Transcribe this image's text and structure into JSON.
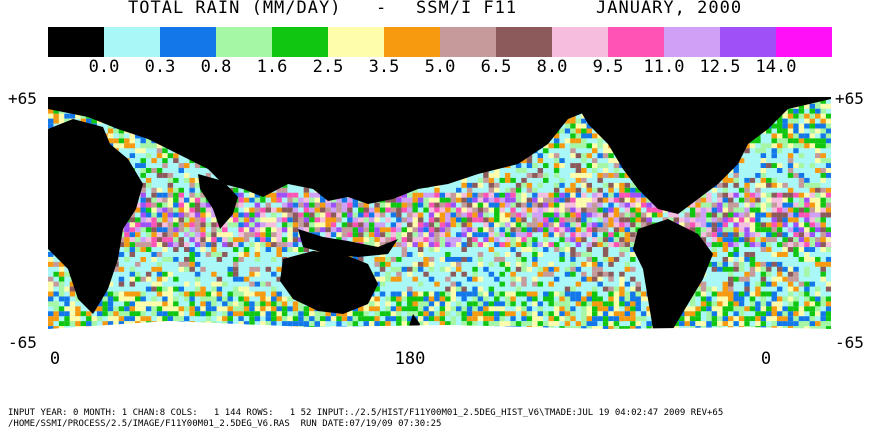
{
  "title": {
    "part1": "TOTAL RAIN (MM/DAY)",
    "sep": "-",
    "part2": "SSM/I F11",
    "part3": "JANUARY, 2000"
  },
  "legend": {
    "colors": [
      "#000000",
      "#aaf7f7",
      "#1477e9",
      "#a5f7a5",
      "#10c610",
      "#fdfdac",
      "#f79a10",
      "#c69a9a",
      "#8c5a5a",
      "#f7bdde",
      "#ff54b6",
      "#d0a0f7",
      "#a050f7",
      "#ff10f7"
    ],
    "labels": [
      "0.0",
      "0.3",
      "0.8",
      "1.6",
      "2.5",
      "3.5",
      "5.0",
      "6.5",
      "8.0",
      "9.5",
      "11.0",
      "12.5",
      "14.0"
    ]
  },
  "axes": {
    "lat_top_left": "+65",
    "lat_top_right": "+65",
    "lat_bottom_left": "-65",
    "lat_bottom_right": "-65",
    "lon_labels": [
      "0",
      "180",
      "0"
    ]
  },
  "footer": {
    "line1": "INPUT YEAR: 0 MONTH: 1 CHAN:8 COLS:   1 144 ROWS:   1 52 INPUT:./2.5/HIST/F11Y00M01_2.5DEG_HIST_V6\\TMADE:JUL 19 04:02:47 2009 REV+65",
    "line2": "/HOME/SSMI/PROCESS/2.5/IMAGE/F11Y00M01_2.5DEG_V6.RAS  RUN DATE:07/19/09 07:30:25"
  }
}
